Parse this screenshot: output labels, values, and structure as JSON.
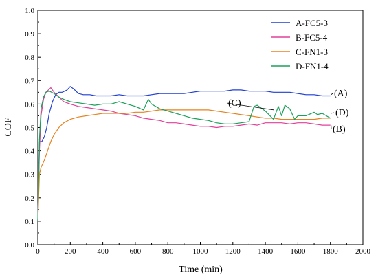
{
  "chart_data": {
    "type": "line",
    "title": "",
    "xlabel": "Time (min)",
    "ylabel": "COF",
    "xlim": [
      0,
      2000
    ],
    "ylim": [
      0,
      1.0
    ],
    "xticks": [
      "0",
      "200",
      "400",
      "600",
      "800",
      "1000",
      "1200",
      "1400",
      "1600",
      "1800",
      "2000"
    ],
    "yticks": [
      "0.0",
      "0.1",
      "0.2",
      "0.3",
      "0.4",
      "0.5",
      "0.6",
      "0.7",
      "0.8",
      "0.9",
      "1.0"
    ],
    "legend_position": "top-right",
    "grid": false,
    "series": [
      {
        "name": "A-FC5-3",
        "color": "#1f3fd6",
        "x": [
          0,
          10,
          25,
          40,
          55,
          70,
          90,
          110,
          130,
          150,
          180,
          200,
          220,
          250,
          280,
          320,
          360,
          400,
          450,
          500,
          550,
          600,
          650,
          700,
          750,
          800,
          850,
          900,
          950,
          1000,
          1050,
          1100,
          1150,
          1200,
          1250,
          1300,
          1350,
          1400,
          1450,
          1500,
          1550,
          1600,
          1650,
          1700,
          1750,
          1800
        ],
        "y": [
          0.1,
          0.44,
          0.44,
          0.46,
          0.5,
          0.56,
          0.61,
          0.64,
          0.65,
          0.65,
          0.66,
          0.675,
          0.665,
          0.645,
          0.64,
          0.64,
          0.635,
          0.635,
          0.635,
          0.64,
          0.635,
          0.635,
          0.635,
          0.64,
          0.645,
          0.645,
          0.645,
          0.645,
          0.65,
          0.655,
          0.655,
          0.655,
          0.655,
          0.66,
          0.66,
          0.655,
          0.655,
          0.655,
          0.65,
          0.65,
          0.65,
          0.645,
          0.64,
          0.64,
          0.635,
          0.635
        ]
      },
      {
        "name": "B-FC5-4",
        "color": "#e0409a",
        "x": [
          0,
          10,
          20,
          35,
          50,
          65,
          80,
          100,
          130,
          160,
          200,
          250,
          300,
          350,
          400,
          450,
          500,
          550,
          600,
          650,
          700,
          750,
          800,
          850,
          900,
          950,
          1000,
          1050,
          1100,
          1150,
          1200,
          1250,
          1300,
          1350,
          1400,
          1450,
          1500,
          1550,
          1600,
          1650,
          1700,
          1750,
          1800
        ],
        "y": [
          0.1,
          0.4,
          0.55,
          0.62,
          0.65,
          0.66,
          0.67,
          0.65,
          0.63,
          0.61,
          0.6,
          0.59,
          0.585,
          0.58,
          0.575,
          0.57,
          0.56,
          0.555,
          0.55,
          0.54,
          0.535,
          0.53,
          0.52,
          0.52,
          0.515,
          0.51,
          0.505,
          0.505,
          0.5,
          0.505,
          0.505,
          0.51,
          0.515,
          0.51,
          0.52,
          0.52,
          0.52,
          0.515,
          0.52,
          0.52,
          0.515,
          0.51,
          0.51
        ]
      },
      {
        "name": "C-FN1-3",
        "color": "#e8821e",
        "x": [
          0,
          10,
          20,
          40,
          60,
          80,
          100,
          130,
          160,
          200,
          250,
          300,
          350,
          400,
          450,
          500,
          550,
          600,
          650,
          700,
          750,
          800,
          850,
          900,
          950,
          1000,
          1050,
          1100,
          1150,
          1200,
          1250,
          1300,
          1350,
          1400,
          1450,
          1500,
          1550,
          1600,
          1650,
          1700,
          1750,
          1800
        ],
        "y": [
          0.1,
          0.3,
          0.33,
          0.36,
          0.4,
          0.44,
          0.47,
          0.5,
          0.52,
          0.535,
          0.545,
          0.55,
          0.555,
          0.56,
          0.56,
          0.56,
          0.56,
          0.565,
          0.565,
          0.57,
          0.575,
          0.575,
          0.575,
          0.575,
          0.575,
          0.575,
          0.575,
          0.57,
          0.565,
          0.56,
          0.555,
          0.55,
          0.545,
          0.54,
          0.54,
          0.535,
          0.535,
          0.535,
          0.535,
          0.535,
          0.54,
          0.54
        ]
      },
      {
        "name": "D-FN1-4",
        "color": "#1aa05a",
        "x": [
          0,
          10,
          20,
          35,
          50,
          70,
          100,
          130,
          160,
          200,
          250,
          300,
          350,
          400,
          450,
          500,
          550,
          600,
          650,
          680,
          700,
          750,
          800,
          850,
          900,
          950,
          1000,
          1050,
          1100,
          1150,
          1200,
          1250,
          1300,
          1330,
          1350,
          1400,
          1450,
          1480,
          1500,
          1520,
          1550,
          1580,
          1600,
          1650,
          1700,
          1720,
          1750,
          1800
        ],
        "y": [
          0.1,
          0.45,
          0.58,
          0.63,
          0.65,
          0.655,
          0.645,
          0.63,
          0.62,
          0.61,
          0.605,
          0.6,
          0.595,
          0.6,
          0.6,
          0.61,
          0.6,
          0.59,
          0.575,
          0.62,
          0.6,
          0.58,
          0.57,
          0.56,
          0.55,
          0.54,
          0.535,
          0.53,
          0.52,
          0.515,
          0.515,
          0.52,
          0.525,
          0.59,
          0.595,
          0.57,
          0.535,
          0.59,
          0.55,
          0.595,
          0.58,
          0.535,
          0.55,
          0.55,
          0.565,
          0.555,
          0.56,
          0.54
        ]
      }
    ],
    "annotations": [
      {
        "text": "(A)",
        "x": 1800,
        "y": 0.64
      },
      {
        "text": "(B)",
        "x": 1800,
        "y": 0.51
      },
      {
        "text": "(C)",
        "x": 1450,
        "y": 0.575
      },
      {
        "text": "(D)",
        "x": 1800,
        "y": 0.56
      }
    ]
  }
}
